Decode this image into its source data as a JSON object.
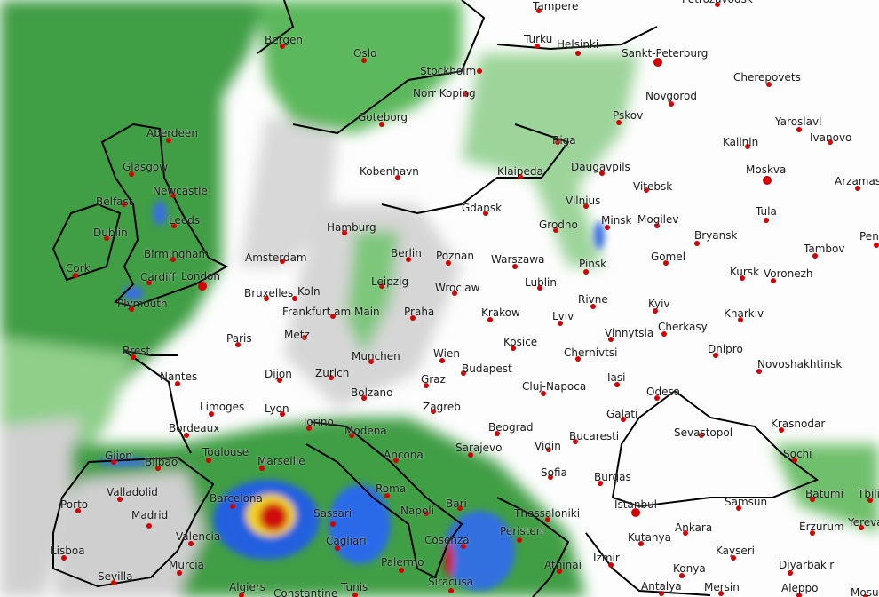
{
  "map": {
    "colors": {
      "rain_light": "#4caf50",
      "rain_medium": "#1e5bd8",
      "rain_heavy": "#e01010",
      "cloud": "#c8c8c8",
      "coast": "#000000",
      "city_dot": "#d40000"
    },
    "cities": [
      "Tampere",
      "Petrozavodsk",
      "Bergen",
      "Oslo",
      "Turku",
      "Helsinki",
      "Sankt-Peterburg",
      "Stockholm",
      "Cherepovets",
      "Norr Koping",
      "Novgorod",
      "Goteborg",
      "Pskov",
      "Yaroslavl",
      "Aberdeen",
      "Riga",
      "Kalinin",
      "Ivanovo",
      "Glasgow",
      "Kobenhavn",
      "Klaipeda",
      "Daugavpils",
      "Moskva",
      "Arzamas",
      "Newcastle",
      "Vitebsk",
      "Belfast",
      "Leeds",
      "Gdansk",
      "Vilnius",
      "Minsk",
      "Mogilev",
      "Tula",
      "Dublin",
      "Hamburg",
      "Grodno",
      "Bryansk",
      "Penza",
      "Birmingham",
      "Amsterdam",
      "Berlin",
      "Poznan",
      "Warszawa",
      "Gomel",
      "Tambov",
      "Cork",
      "Cardiff",
      "London",
      "Pinsk",
      "Kursk",
      "Voronezh",
      "Bruxelles",
      "Koln",
      "Leipzig",
      "Wroclaw",
      "Lublin",
      "Plymouth",
      "Frankfurt am Main",
      "Praha",
      "Krakow",
      "Rivne",
      "Kyiv",
      "Kharkiv",
      "Lviv",
      "Cherkasy",
      "Paris",
      "Metz",
      "Vinnytsia",
      "Brest",
      "Munchen",
      "Wien",
      "Kosice",
      "Dnipro",
      "Chernivtsi",
      "Budapest",
      "Nantes",
      "Dijon",
      "Zurich",
      "Graz",
      "Cluj-Napoca",
      "Iasi",
      "Novoshakhtinsk",
      "Bolzano",
      "Odesa",
      "Limoges",
      "Lyon",
      "Zagreb",
      "Galati",
      "Krasnodar",
      "Torino",
      "Modena",
      "Beograd",
      "Sevastopol",
      "Bordeaux",
      "Vidin",
      "Bucaresti",
      "Ancona",
      "Sarajevo",
      "Toulouse",
      "Marseille",
      "Gijon",
      "Bilbao",
      "Sochi",
      "Sofia",
      "Burgas",
      "Valladolid",
      "Barcelona",
      "Roma",
      "Bari",
      "Napoli",
      "Batumi",
      "Tbilisi",
      "Istanbul",
      "Samsun",
      "Thessaloniki",
      "Porto",
      "Madrid",
      "Sassari",
      "Ankara",
      "Erzurum",
      "Yerevan",
      "Valencia",
      "Cagliari",
      "Cosenza",
      "Peristeri",
      "Kutahya",
      "Kayseri",
      "Lisboa",
      "Palermo",
      "Izmir",
      "Konya",
      "Diyarbakir",
      "Murcia",
      "Athinai",
      "Sevilla",
      "Siracusa",
      "Algiers",
      "Tunis",
      "Constantine",
      "Antalya",
      "Mersin",
      "Aleppo",
      "Mosul"
    ]
  }
}
